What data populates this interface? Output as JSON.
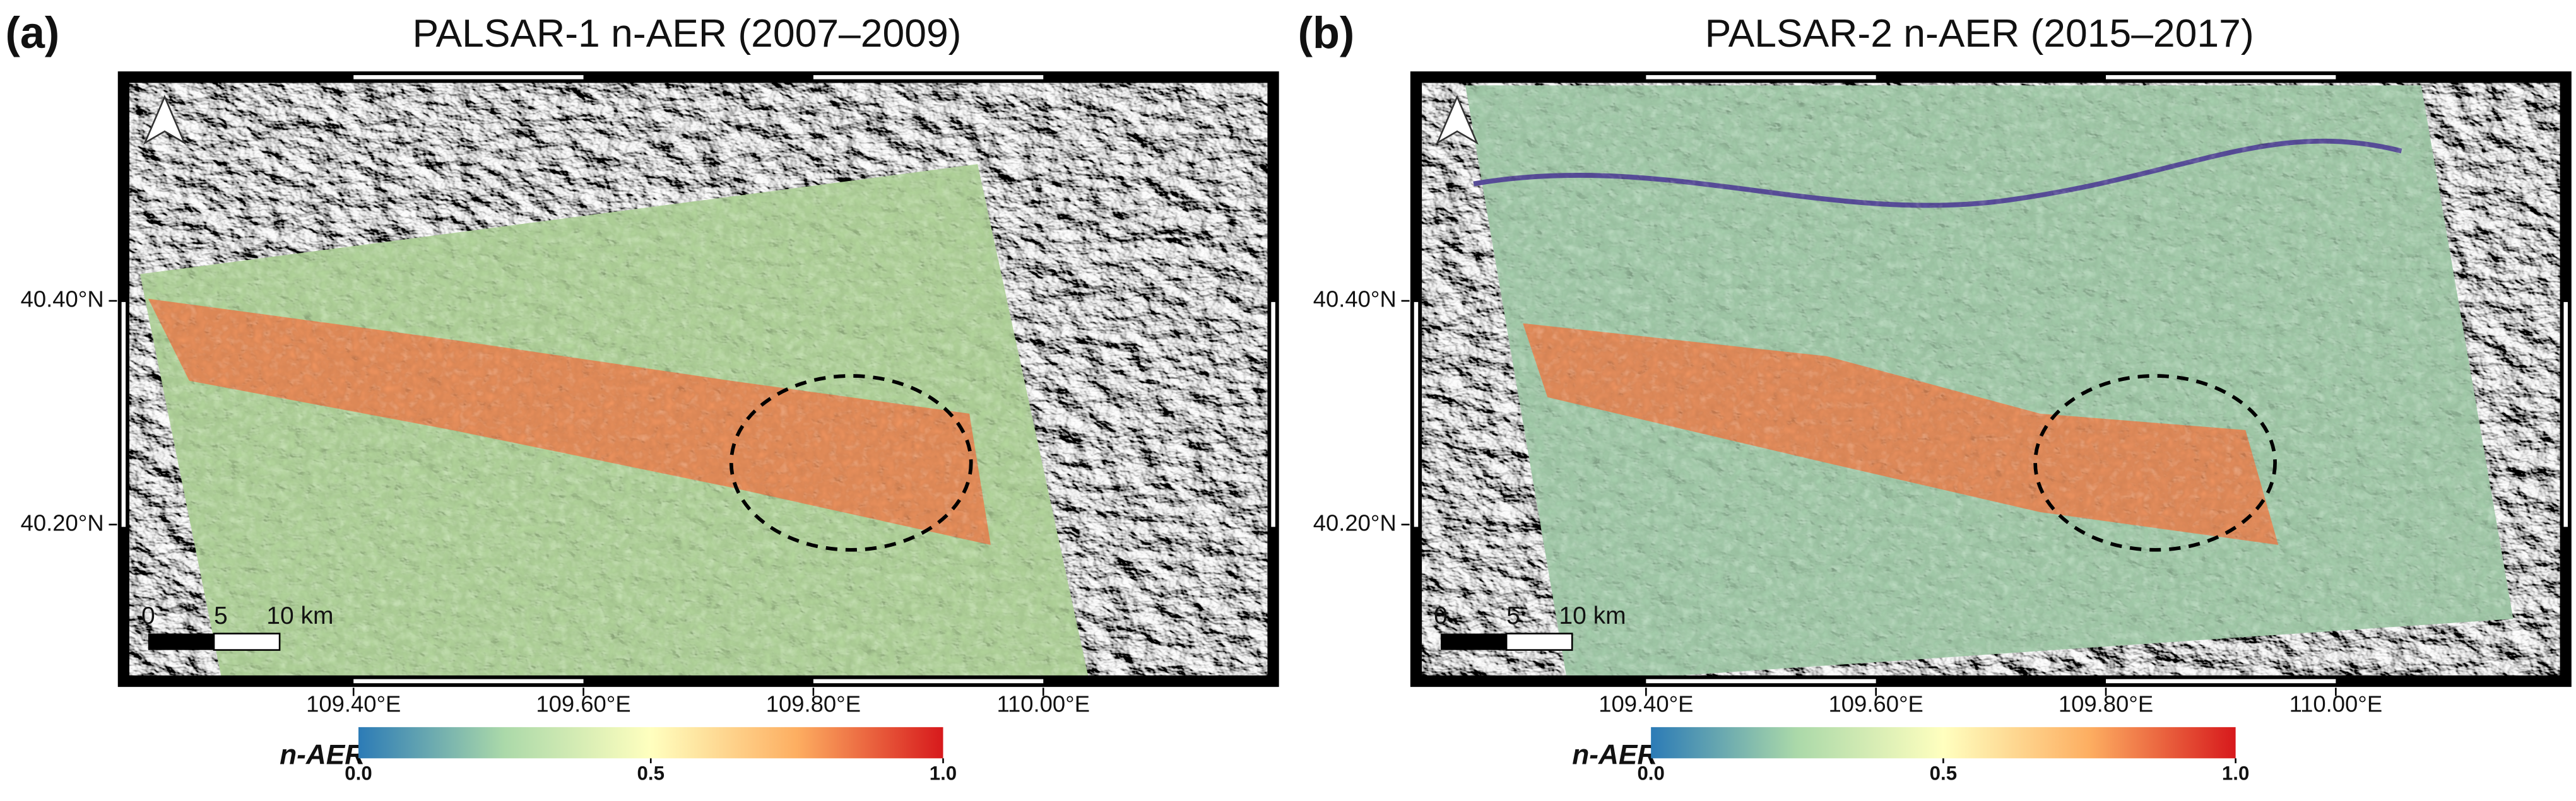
{
  "panels": [
    {
      "label": "(a)",
      "title": "PALSAR-1 n-AER (2007–2009)",
      "xlim": [
        109.2,
        110.2
      ],
      "ylim": [
        40.06,
        40.6
      ],
      "xticks": [
        {
          "value": 109.4,
          "label": "109.40°E"
        },
        {
          "value": 109.6,
          "label": "109.60°E"
        },
        {
          "value": 109.8,
          "label": "109.80°E"
        },
        {
          "value": 110.0,
          "label": "110.00°E"
        }
      ],
      "yticks": [
        {
          "value": 40.4,
          "label": "40.40°N"
        },
        {
          "value": 40.2,
          "label": "40.20°N"
        }
      ],
      "scale_bar": [
        "0",
        "5",
        "10 km"
      ],
      "colorbar": {
        "label": "n-AER",
        "lim": [
          0,
          1
        ],
        "ticks": [
          {
            "value": 0,
            "label": "0.0"
          },
          {
            "value": 0.5,
            "label": "0.5"
          },
          {
            "value": 1,
            "label": "1.0"
          }
        ]
      }
    },
    {
      "label": "(b)",
      "title": "PALSAR-2 n-AER (2015–2017)",
      "xlim": [
        109.2,
        110.2
      ],
      "ylim": [
        40.06,
        40.6
      ],
      "xticks": [
        {
          "value": 109.4,
          "label": "109.40°E"
        },
        {
          "value": 109.6,
          "label": "109.60°E"
        },
        {
          "value": 109.8,
          "label": "109.80°E"
        },
        {
          "value": 110.0,
          "label": "110.00°E"
        }
      ],
      "yticks": [
        {
          "value": 40.4,
          "label": "40.40°N"
        },
        {
          "value": 40.2,
          "label": "40.20°N"
        }
      ],
      "scale_bar": [
        "0",
        "5",
        "10 km"
      ],
      "colorbar": {
        "label": "n-AER",
        "lim": [
          0,
          1
        ],
        "ticks": [
          {
            "value": 0,
            "label": "0.0"
          },
          {
            "value": 0.5,
            "label": "0.5"
          },
          {
            "value": 1,
            "label": "1.0"
          }
        ]
      }
    }
  ]
}
